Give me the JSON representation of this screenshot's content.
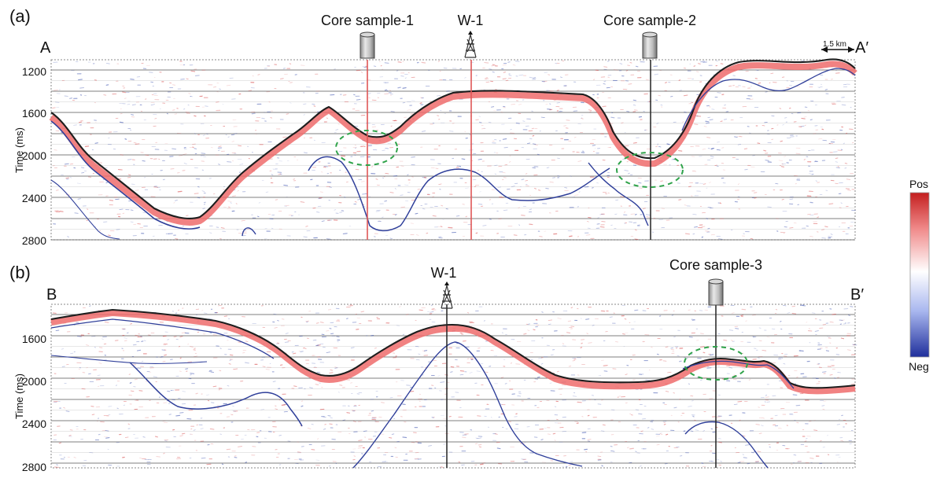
{
  "figure": {
    "colors": {
      "background": "#ffffff",
      "grid": "#666666",
      "panel_border": "#8a8a8a",
      "horizon_main": "#1d1d1d",
      "horizon_secondary": "#2f3f9a",
      "red_line": "#df5757",
      "black_line": "#222222",
      "ellipse": "#2fa34a",
      "seismic_pos": "#d43a3a",
      "seismic_neg": "#2c44a8"
    },
    "colorbar": {
      "top_label": "Pos",
      "bottom_label": "Neg"
    }
  },
  "panels": [
    {
      "id": "a",
      "label": "(a)",
      "left_label": "A",
      "right_label": "A′",
      "scale_label": "1.5 km",
      "ylabel": "Time (ms)",
      "ytick_labels": [
        "1200",
        "1600",
        "2000",
        "2400",
        "2800"
      ],
      "markers": [
        {
          "kind": "core",
          "label": "Core sample-1",
          "line": "red",
          "circled": true
        },
        {
          "kind": "well",
          "label": "W-1",
          "line": "red",
          "circled": false
        },
        {
          "kind": "core",
          "label": "Core sample-2",
          "line": "black",
          "circled": true
        }
      ]
    },
    {
      "id": "b",
      "label": "(b)",
      "left_label": "B",
      "right_label": "B′",
      "scale_label": "",
      "ylabel": "Time (ms)",
      "ytick_labels": [
        "1600",
        "2000",
        "2400",
        "2800"
      ],
      "markers": [
        {
          "kind": "well",
          "label": "W-1",
          "line": "black",
          "circled": false
        },
        {
          "kind": "core",
          "label": "Core sample-3",
          "line": "black",
          "circled": true
        }
      ]
    }
  ]
}
